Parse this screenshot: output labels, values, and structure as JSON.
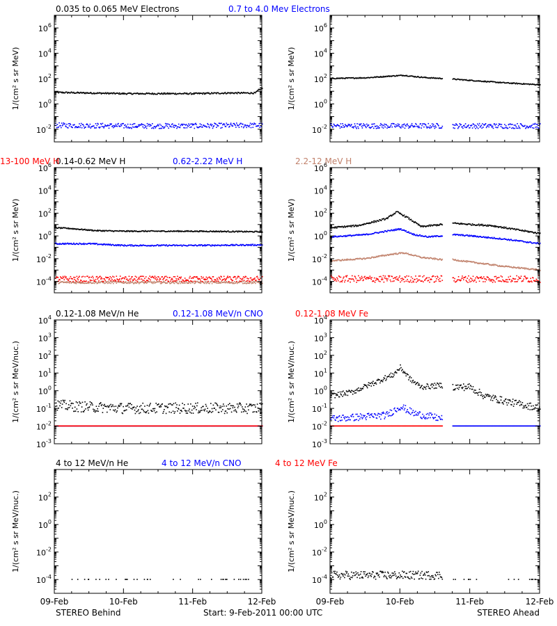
{
  "labels": {
    "xticks": [
      "09-Feb",
      "10-Feb",
      "11-Feb",
      "12-Feb"
    ],
    "footer_left": "STEREO Behind",
    "footer_center": "Start:  9-Feb-2011 00:00 UTC",
    "footer_right": "STEREO Ahead"
  },
  "colors": {
    "black": "#000000",
    "blue": "#0000ff",
    "tan": "#c0806a",
    "red": "#ff0000"
  },
  "chart_data": [
    {
      "type": "scatter",
      "row": 0,
      "header": [
        {
          "text": "0.035 to 0.065 MeV Electrons",
          "color": "#000000"
        },
        {
          "text": "0.7 to 4.0 Mev Electrons",
          "color": "#0000ff"
        }
      ],
      "ylabel": "1/(cm² s sr MeV)",
      "ylim_log10": [
        -3,
        7
      ],
      "yticks": [
        {
          "e": -2,
          "label": "10",
          "sup": "-2"
        },
        {
          "e": 0,
          "label": "10",
          "sup": "0"
        },
        {
          "e": 2,
          "label": "10",
          "sup": "2"
        },
        {
          "e": 4,
          "label": "10",
          "sup": "4"
        },
        {
          "e": 6,
          "label": "10",
          "sup": "6"
        }
      ],
      "xlim_days": [
        0,
        3
      ],
      "panels": [
        {
          "name": "STEREO Behind",
          "series": [
            {
              "name": "0.035 to 0.065 MeV Electrons",
              "color": "#000000",
              "x": [
                0,
                0.5,
                1,
                1.5,
                2,
                2.5,
                2.9,
                2.95,
                3
              ],
              "log10y": [
                0.9,
                0.85,
                0.8,
                0.8,
                0.8,
                0.85,
                0.85,
                1.1,
                1.2
              ],
              "scatter": 0.06
            },
            {
              "name": "0.7 to 4.0 Mev Electrons",
              "color": "#0000ff",
              "x": [
                0,
                1,
                2,
                3
              ],
              "log10y": [
                -1.7,
                -1.75,
                -1.75,
                -1.7
              ],
              "scatter": 0.2
            }
          ]
        },
        {
          "name": "STEREO Ahead",
          "series": [
            {
              "name": "0.035 to 0.065 MeV Electrons",
              "color": "#000000",
              "x": [
                0,
                0.5,
                0.9,
                1.05,
                1.2,
                1.4,
                1.6
              ],
              "log10y": [
                2.0,
                2.05,
                2.2,
                2.25,
                2.15,
                2.05,
                2.0
              ],
              "scatter": 0.04
            },
            {
              "name": "0.035 to 0.065 MeV Electrons",
              "color": "#000000",
              "x": [
                1.75,
                2.0,
                2.5,
                3.0
              ],
              "log10y": [
                1.95,
                1.85,
                1.65,
                1.5
              ],
              "scatter": 0.04
            },
            {
              "name": "0.7 to 4.0 Mev Electrons",
              "color": "#0000ff",
              "x": [
                0,
                1.6
              ],
              "log10y": [
                -1.75,
                -1.75
              ],
              "scatter": 0.2
            },
            {
              "name": "0.7 to 4.0 Mev Electrons",
              "color": "#0000ff",
              "x": [
                1.75,
                3.0
              ],
              "log10y": [
                -1.75,
                -1.75
              ],
              "scatter": 0.2
            }
          ]
        }
      ]
    },
    {
      "type": "scatter",
      "row": 1,
      "header": [
        {
          "text": "0.14-0.62 MeV H",
          "color": "#000000"
        },
        {
          "text": "0.62-2.22 MeV H",
          "color": "#0000ff"
        },
        {
          "text": "2.2-12 MeV H",
          "color": "#c0806a"
        },
        {
          "text": "13-100 MeV H",
          "color": "#ff0000"
        }
      ],
      "ylabel": "1/(cm² s sr MeV)",
      "ylim_log10": [
        -5,
        6
      ],
      "yticks": [
        {
          "e": -4,
          "label": "10",
          "sup": "-4"
        },
        {
          "e": -2,
          "label": "10",
          "sup": "-2"
        },
        {
          "e": 0,
          "label": "10",
          "sup": "0"
        },
        {
          "e": 2,
          "label": "10",
          "sup": "2"
        },
        {
          "e": 4,
          "label": "10",
          "sup": "4"
        },
        {
          "e": 6,
          "label": "10",
          "sup": "6"
        }
      ],
      "xlim_days": [
        0,
        3
      ],
      "panels": [
        {
          "name": "STEREO Behind",
          "series": [
            {
              "name": "0.14-0.62 MeV H",
              "color": "#000000",
              "x": [
                0,
                0.2,
                0.6,
                1,
                2,
                3
              ],
              "log10y": [
                0.7,
                0.65,
                0.45,
                0.4,
                0.4,
                0.35
              ],
              "scatter": 0.05
            },
            {
              "name": "0.62-2.22 MeV H",
              "color": "#0000ff",
              "x": [
                0,
                0.5,
                1,
                2,
                3
              ],
              "log10y": [
                -0.7,
                -0.7,
                -0.85,
                -0.85,
                -0.8
              ],
              "scatter": 0.06
            },
            {
              "name": "2.2-12 MeV H",
              "color": "#c0806a",
              "x": [
                0,
                3
              ],
              "log10y": [
                -4.1,
                -4.1
              ],
              "scatter": 0.1
            },
            {
              "name": "13-100 MeV H",
              "color": "#ff0000",
              "x": [
                0,
                3
              ],
              "log10y": [
                -3.8,
                -3.8
              ],
              "scatter": 0.25
            }
          ]
        },
        {
          "name": "STEREO Ahead",
          "series": [
            {
              "name": "0.14-0.62 MeV H",
              "color": "#000000",
              "x": [
                0,
                0.4,
                0.8,
                0.95,
                1.1,
                1.3,
                1.6
              ],
              "log10y": [
                0.7,
                0.9,
                1.5,
                2.1,
                1.6,
                0.8,
                1.0
              ],
              "scatter": 0.07
            },
            {
              "name": "0.14-0.62 MeV H",
              "color": "#000000",
              "x": [
                1.75,
                2.0,
                2.3,
                2.6,
                3.0
              ],
              "log10y": [
                1.1,
                1.0,
                0.9,
                0.6,
                0.2
              ],
              "scatter": 0.07
            },
            {
              "name": "0.62-2.22 MeV H",
              "color": "#0000ff",
              "x": [
                0,
                0.5,
                0.9,
                1.0,
                1.2,
                1.4,
                1.6
              ],
              "log10y": [
                -0.1,
                0.1,
                0.5,
                0.6,
                0.1,
                -0.1,
                0.0
              ],
              "scatter": 0.06
            },
            {
              "name": "0.62-2.22 MeV H",
              "color": "#0000ff",
              "x": [
                1.75,
                2.0,
                2.5,
                3.0
              ],
              "log10y": [
                0.1,
                0.0,
                -0.3,
                -0.7
              ],
              "scatter": 0.06
            },
            {
              "name": "2.2-12 MeV H",
              "color": "#c0806a",
              "x": [
                0,
                0.5,
                0.9,
                1.05,
                1.3,
                1.6
              ],
              "log10y": [
                -2.2,
                -2.0,
                -1.6,
                -1.5,
                -1.9,
                -2.1
              ],
              "scatter": 0.06
            },
            {
              "name": "2.2-12 MeV H",
              "color": "#c0806a",
              "x": [
                1.75,
                2.0,
                2.5,
                3.0
              ],
              "log10y": [
                -2.1,
                -2.3,
                -2.7,
                -3.0
              ],
              "scatter": 0.06
            },
            {
              "name": "13-100 MeV H",
              "color": "#ff0000",
              "x": [
                0,
                1.6
              ],
              "log10y": [
                -3.8,
                -3.8
              ],
              "scatter": 0.3
            },
            {
              "name": "13-100 MeV H",
              "color": "#ff0000",
              "x": [
                1.75,
                3.0
              ],
              "log10y": [
                -3.8,
                -3.8
              ],
              "scatter": 0.3
            }
          ]
        }
      ]
    },
    {
      "type": "scatter",
      "row": 2,
      "header": [
        {
          "text": "0.12-1.08 MeV/n He",
          "color": "#000000"
        },
        {
          "text": "0.12-1.08 MeV/n CNO",
          "color": "#0000ff"
        },
        {
          "text": "0.12-1.08 MeV Fe",
          "color": "#ff0000"
        }
      ],
      "ylabel": "1/(cm² s sr MeV/nuc.)",
      "ylim_log10": [
        -3,
        4
      ],
      "yticks": [
        {
          "e": -3,
          "label": "10",
          "sup": "-3"
        },
        {
          "e": -2,
          "label": "10",
          "sup": "-2"
        },
        {
          "e": -1,
          "label": "10",
          "sup": "-1"
        },
        {
          "e": 0,
          "label": "10",
          "sup": "0"
        },
        {
          "e": 1,
          "label": "10",
          "sup": "1"
        },
        {
          "e": 2,
          "label": "10",
          "sup": "2"
        },
        {
          "e": 3,
          "label": "10",
          "sup": "3"
        },
        {
          "e": 4,
          "label": "10",
          "sup": "4"
        }
      ],
      "xlim_days": [
        0,
        3
      ],
      "panels": [
        {
          "name": "STEREO Behind",
          "series": [
            {
              "name": "0.12-1.08 MeV/n He",
              "color": "#000000",
              "x": [
                0,
                0.3,
                1,
                2,
                3
              ],
              "log10y": [
                -0.8,
                -0.9,
                -1.0,
                -1.0,
                -1.0
              ],
              "scatter": 0.3
            },
            {
              "name": "0.12-1.08 MeV/n CNO",
              "color": "#0000ff",
              "x": [
                0,
                3
              ],
              "log10y": [
                -2.0,
                -2.0
              ],
              "scatter": 0.0
            },
            {
              "name": "0.12-1.08 MeV Fe",
              "color": "#ff0000",
              "x": [
                0,
                3
              ],
              "log10y": [
                -2.0,
                -2.0
              ],
              "scatter": 0.0
            }
          ]
        },
        {
          "name": "STEREO Ahead",
          "series": [
            {
              "name": "0.12-1.08 MeV/n He",
              "color": "#000000",
              "x": [
                0,
                0.3,
                0.6,
                0.9,
                1.0,
                1.15,
                1.3,
                1.6
              ],
              "log10y": [
                -0.3,
                -0.1,
                0.4,
                0.9,
                1.3,
                0.6,
                0.2,
                0.3
              ],
              "scatter": 0.15
            },
            {
              "name": "0.12-1.08 MeV/n He",
              "color": "#000000",
              "x": [
                1.75,
                2.0,
                2.2,
                2.5,
                3.0
              ],
              "log10y": [
                0.2,
                0.2,
                -0.3,
                -0.6,
                -1.0
              ],
              "scatter": 0.2
            },
            {
              "name": "0.12-1.08 MeV/n CNO",
              "color": "#0000ff",
              "x": [
                0,
                0.8,
                1.0,
                1.2,
                1.6
              ],
              "log10y": [
                -1.6,
                -1.4,
                -0.9,
                -1.3,
                -1.6
              ],
              "scatter": 0.2
            },
            {
              "name": "0.12-1.08 MeV/n CNO",
              "color": "#0000ff",
              "x": [
                1.75,
                3.0
              ],
              "log10y": [
                -2.0,
                -2.0
              ],
              "scatter": 0.0
            },
            {
              "name": "0.12-1.08 MeV Fe",
              "color": "#ff0000",
              "x": [
                0,
                1.6
              ],
              "log10y": [
                -2.0,
                -2.0
              ],
              "scatter": 0.0
            }
          ]
        }
      ]
    },
    {
      "type": "scatter",
      "row": 3,
      "header": [
        {
          "text": "4 to 12 MeV/n He",
          "color": "#000000"
        },
        {
          "text": "4 to 12 MeV/n CNO",
          "color": "#0000ff"
        },
        {
          "text": "4 to 12 MeV Fe",
          "color": "#ff0000"
        }
      ],
      "ylabel": "1/(cm² s sr MeV/nuc.)",
      "ylim_log10": [
        -5,
        4
      ],
      "yticks": [
        {
          "e": -4,
          "label": "10",
          "sup": "-4"
        },
        {
          "e": -2,
          "label": "10",
          "sup": "-2"
        },
        {
          "e": 0,
          "label": "10",
          "sup": "0"
        },
        {
          "e": 2,
          "label": "10",
          "sup": "2"
        }
      ],
      "xlim_days": [
        0,
        3
      ],
      "panels": [
        {
          "name": "STEREO Behind",
          "series": [
            {
              "name": "4 to 12 MeV/n He",
              "color": "#000000",
              "x": [
                0,
                3
              ],
              "log10y": [
                -4.0,
                -4.0
              ],
              "scatter": 0.0,
              "sparse": true
            }
          ]
        },
        {
          "name": "STEREO Ahead",
          "series": [
            {
              "name": "4 to 12 MeV/n He",
              "color": "#000000",
              "x": [
                0,
                1.6
              ],
              "log10y": [
                -3.7,
                -3.7
              ],
              "scatter": 0.3
            },
            {
              "name": "4 to 12 MeV/n He",
              "color": "#000000",
              "x": [
                1.75,
                3.0
              ],
              "log10y": [
                -4.0,
                -4.0
              ],
              "scatter": 0.0,
              "sparse": true
            }
          ]
        }
      ]
    }
  ]
}
